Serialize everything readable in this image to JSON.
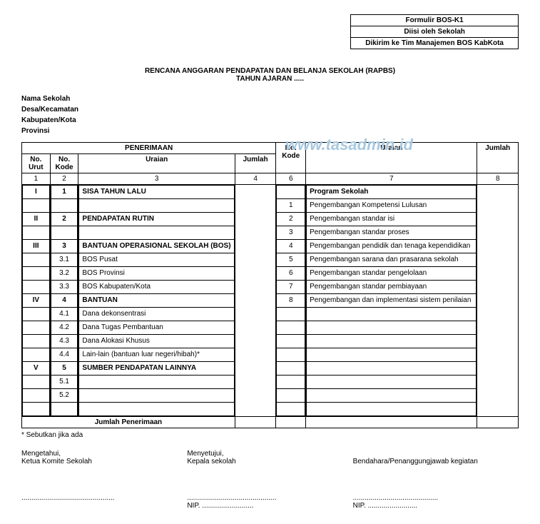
{
  "header_box": {
    "line1": "Formulir BOS-K1",
    "line2": "Diisi oleh Sekolah",
    "line3": "Dikirim ke Tim Manajemen BOS KabKota"
  },
  "title": {
    "line1": "RENCANA ANGGARAN PENDAPATAN DAN BELANJA SEKOLAH (RAPBS)",
    "line2": "TAHUN AJARAN ....."
  },
  "meta": {
    "school": "Nama Sekolah",
    "desa": "Desa/Kecamatan",
    "kab": "Kabupaten/Kota",
    "prov": "Provinsi"
  },
  "watermark": "www.tasadmin.id",
  "table": {
    "penerimaan_header": "PENERIMAAN",
    "headers": {
      "no_urut": "No. Urut",
      "no_kode": "No. Kode",
      "uraian": "Uraian",
      "jumlah": "Jumlah",
      "no_kode2": "No. Kode",
      "uraian2": "Uraian",
      "jumlah2": "Jumlah"
    },
    "col_nums": [
      "1",
      "2",
      "3",
      "4",
      "6",
      "7",
      "8"
    ],
    "left_rows": [
      {
        "urut": "I",
        "kode": "1",
        "uraian": "SISA TAHUN LALU",
        "bold": true
      },
      {
        "urut": "",
        "kode": "",
        "uraian": ""
      },
      {
        "urut": "II",
        "kode": "2",
        "uraian": "PENDAPATAN RUTIN",
        "bold": true
      },
      {
        "urut": "",
        "kode": "",
        "uraian": ""
      },
      {
        "urut": "III",
        "kode": "3",
        "uraian": "BANTUAN OPERASIONAL SEKOLAH (BOS)",
        "bold": true
      },
      {
        "urut": "",
        "kode": "3.1",
        "uraian": "BOS Pusat"
      },
      {
        "urut": "",
        "kode": "3.2",
        "uraian": "BOS Provinsi"
      },
      {
        "urut": "",
        "kode": "3.3",
        "uraian": "BOS Kabupaten/Kota"
      },
      {
        "urut": "IV",
        "kode": "4",
        "uraian": "BANTUAN",
        "bold": true
      },
      {
        "urut": "",
        "kode": "4.1",
        "uraian": "Dana dekonsentrasi"
      },
      {
        "urut": "",
        "kode": "4.2",
        "uraian": "Dana Tugas Pembantuan"
      },
      {
        "urut": "",
        "kode": "4.3",
        "uraian": "Dana Alokasi Khusus"
      },
      {
        "urut": "",
        "kode": "4.4",
        "uraian": "Lain-lain (bantuan luar negeri/hibah)*"
      },
      {
        "urut": "V",
        "kode": "5",
        "uraian": "SUMBER PENDAPATAN LAINNYA",
        "bold": true
      },
      {
        "urut": "",
        "kode": "5.1",
        "uraian": ""
      },
      {
        "urut": "",
        "kode": "5.2",
        "uraian": ""
      },
      {
        "urut": "",
        "kode": "",
        "uraian": ""
      }
    ],
    "right_rows": [
      {
        "kode": "",
        "uraian": "Program Sekolah",
        "bold": true
      },
      {
        "kode": "1",
        "uraian": "Pengembangan Kompetensi Lulusan"
      },
      {
        "kode": "2",
        "uraian": "Pengembangan standar isi"
      },
      {
        "kode": "3",
        "uraian": "Pengembangan standar proses"
      },
      {
        "kode": "4",
        "uraian": "Pengembangan pendidik dan tenaga kependidikan"
      },
      {
        "kode": "5",
        "uraian": "Pengembangan sarana dan prasarana sekolah"
      },
      {
        "kode": "6",
        "uraian": "Pengembangan standar pengelolaan"
      },
      {
        "kode": "7",
        "uraian": "Pengembangan standar pembiayaan"
      },
      {
        "kode": "8",
        "uraian": "Pengembangan dan implementasi sistem penilaian"
      }
    ],
    "footer_label": "Jumlah Penerimaan"
  },
  "footnote": "* Sebutkan jika ada",
  "signatures": {
    "s1_line1": "Mengetahui,",
    "s1_line2": "Ketua Komite Sekolah",
    "s1_sign": "...............................................",
    "s2_line1": "Menyetujui,",
    "s2_line2": "Kepala sekolah",
    "s2_sign": ".............................................",
    "s2_nip": "NIP. ..........................",
    "s3_line1": "Bendahara/Penanggungjawab kegiatan",
    "s3_sign": "...........................................",
    "s3_nip": "NIP. ........................."
  }
}
